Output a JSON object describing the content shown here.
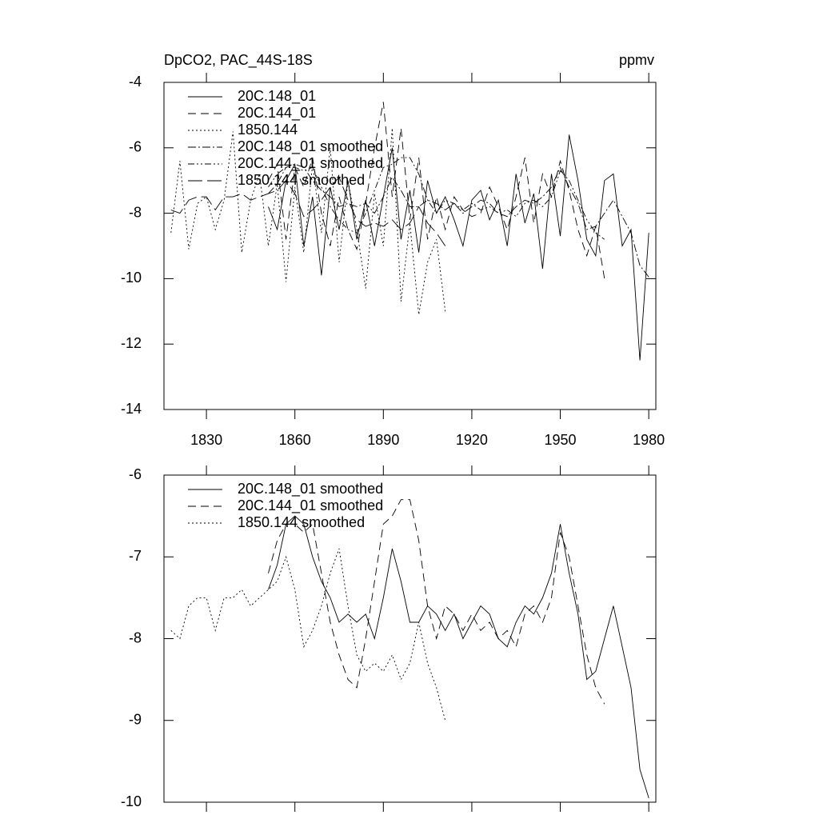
{
  "chart_data": [
    {
      "type": "line",
      "title": "DpCO2, PAC_44S-18S",
      "units_label": "ppmv",
      "x": [
        1818,
        1821,
        1824,
        1827,
        1830,
        1833,
        1836,
        1839,
        1842,
        1845,
        1848,
        1851,
        1854,
        1857,
        1860,
        1863,
        1866,
        1869,
        1872,
        1875,
        1878,
        1881,
        1884,
        1887,
        1890,
        1893,
        1896,
        1899,
        1902,
        1905,
        1908,
        1911,
        1914,
        1917,
        1920,
        1923,
        1926,
        1929,
        1932,
        1935,
        1938,
        1941,
        1944,
        1947,
        1950,
        1953,
        1956,
        1959,
        1962,
        1965,
        1968,
        1971,
        1974,
        1977,
        1980
      ],
      "xlim": [
        1815.6,
        1982.4
      ],
      "ylim": [
        -14,
        -4
      ],
      "xticks": [
        1830,
        1860,
        1890,
        1920,
        1950,
        1980
      ],
      "xtick_labels": true,
      "yticks": [
        -14,
        -12,
        -10,
        -8,
        -6,
        -4
      ],
      "series": [
        {
          "name": "20C.148_01",
          "color": "#000000",
          "style": "solid",
          "values": [
            null,
            null,
            null,
            null,
            null,
            null,
            null,
            null,
            null,
            null,
            null,
            -7.8,
            -8.5,
            -7.0,
            -6.5,
            -9.0,
            -7.5,
            -9.9,
            -7.2,
            -8.5,
            -7.0,
            -8.8,
            -7.6,
            -9.0,
            -7.5,
            -6.0,
            -8.8,
            -7.3,
            -9.2,
            -7.0,
            -8.0,
            -7.5,
            -8.2,
            -9.0,
            -7.6,
            -7.3,
            -8.2,
            -7.6,
            -9.0,
            -6.8,
            -8.3,
            -7.4,
            -9.7,
            -6.8,
            -8.7,
            -5.6,
            -7.0,
            -8.8,
            -9.3,
            -7.0,
            -6.8,
            -9.0,
            -8.5,
            -12.5,
            -8.6
          ]
        },
        {
          "name": "20C.144_01",
          "color": "#000000",
          "style": "dashed",
          "values": [
            null,
            null,
            null,
            null,
            null,
            null,
            null,
            null,
            null,
            null,
            null,
            -7.0,
            -6.5,
            -8.8,
            -6.6,
            -7.2,
            -6.3,
            -8.0,
            -9.0,
            -7.5,
            -8.5,
            -9.1,
            -7.7,
            -6.0,
            -4.6,
            -7.5,
            -5.4,
            -8.2,
            -6.3,
            -8.8,
            -7.5,
            -8.5,
            -7.5,
            -7.9,
            -8.1,
            -8.0,
            -7.2,
            -7.8,
            -8.5,
            -7.5,
            -6.3,
            -8.3,
            -6.8,
            -7.5,
            -6.4,
            -7.3,
            -8.5,
            -9.3,
            -8.4,
            -10.0,
            null,
            null,
            null,
            null,
            null
          ]
        },
        {
          "name": "1850.144",
          "color": "#000000",
          "style": "dotted",
          "values": [
            -8.6,
            -6.4,
            -9.1,
            -7.7,
            -7.5,
            -8.5,
            -7.6,
            -5.5,
            -9.2,
            -7.6,
            -6.8,
            -9.0,
            -7.1,
            -10.1,
            -7.2,
            -9.2,
            -6.5,
            -8.6,
            -6.0,
            -9.5,
            -7.0,
            -8.5,
            -10.3,
            -7.4,
            -9.0,
            -5.4,
            -10.7,
            -8.3,
            -11.1,
            -9.5,
            -8.8,
            -11.0,
            null,
            null,
            null,
            null,
            null,
            null,
            null,
            null,
            null,
            null,
            null,
            null,
            null,
            null,
            null,
            null,
            null,
            null,
            null,
            null,
            null,
            null,
            null
          ]
        },
        {
          "name": "20C.148_01 smoothed",
          "color": "#000000",
          "style": "dashdot",
          "values": [
            null,
            null,
            null,
            null,
            null,
            null,
            null,
            null,
            null,
            null,
            null,
            -7.4,
            -7.1,
            -6.6,
            -6.5,
            -6.6,
            -7.0,
            -7.3,
            -7.5,
            -7.8,
            -7.7,
            -7.8,
            -7.7,
            -8.0,
            -7.5,
            -6.9,
            -7.3,
            -7.8,
            -7.8,
            -7.6,
            -7.7,
            -7.9,
            -7.7,
            -8.0,
            -7.8,
            -7.6,
            -7.7,
            -8.0,
            -8.1,
            -7.8,
            -7.6,
            -7.7,
            -7.5,
            -7.2,
            -6.6,
            -7.2,
            -7.7,
            -8.5,
            -8.4,
            -8.0,
            -7.6,
            -8.1,
            -8.6,
            -9.6,
            -9.95
          ]
        },
        {
          "name": "20C.144_01 smoothed",
          "color": "#000000",
          "style": "dashdotdot",
          "values": [
            null,
            null,
            null,
            null,
            null,
            null,
            null,
            null,
            null,
            null,
            null,
            -7.2,
            -6.8,
            -6.6,
            -6.6,
            -6.7,
            -6.6,
            -7.2,
            -7.8,
            -8.2,
            -8.5,
            -8.6,
            -8.0,
            -7.3,
            -6.6,
            -6.5,
            -6.3,
            -6.3,
            -6.8,
            -7.6,
            -8.0,
            -7.6,
            -7.7,
            -7.9,
            -7.7,
            -7.9,
            -7.8,
            -8.0,
            -7.9,
            -8.1,
            -7.7,
            -7.6,
            -7.8,
            -7.5,
            -6.7,
            -7.0,
            -7.6,
            -8.2,
            -8.6,
            -8.8,
            null,
            null,
            null,
            null,
            null
          ]
        },
        {
          "name": "1850.144 smoothed",
          "color": "#000000",
          "style": "longdash",
          "values": [
            -7.9,
            -8.0,
            -7.6,
            -7.5,
            -7.5,
            -7.9,
            -7.5,
            -7.5,
            -7.4,
            -7.6,
            -7.5,
            -7.4,
            -7.3,
            -7.0,
            -7.4,
            -8.1,
            -7.9,
            -7.6,
            -7.2,
            -6.9,
            -7.6,
            -8.2,
            -8.4,
            -8.3,
            -8.4,
            -8.2,
            -8.5,
            -8.3,
            -7.8,
            -8.3,
            -8.6,
            -9.0,
            null,
            null,
            null,
            null,
            null,
            null,
            null,
            null,
            null,
            null,
            null,
            null,
            null,
            null,
            null,
            null,
            null,
            null,
            null,
            null,
            null,
            null,
            null
          ]
        }
      ]
    },
    {
      "type": "line",
      "x": [
        1818,
        1821,
        1824,
        1827,
        1830,
        1833,
        1836,
        1839,
        1842,
        1845,
        1848,
        1851,
        1854,
        1857,
        1860,
        1863,
        1866,
        1869,
        1872,
        1875,
        1878,
        1881,
        1884,
        1887,
        1890,
        1893,
        1896,
        1899,
        1902,
        1905,
        1908,
        1911,
        1914,
        1917,
        1920,
        1923,
        1926,
        1929,
        1932,
        1935,
        1938,
        1941,
        1944,
        1947,
        1950,
        1953,
        1956,
        1959,
        1962,
        1965,
        1968,
        1971,
        1974,
        1977,
        1980
      ],
      "xlim": [
        1815.6,
        1982.4
      ],
      "ylim": [
        -10,
        -6
      ],
      "xticks": [
        1830,
        1860,
        1890,
        1920,
        1950,
        1980
      ],
      "xtick_labels": false,
      "yticks": [
        -10,
        -9,
        -8,
        -7,
        -6
      ],
      "series": [
        {
          "name": "20C.148_01 smoothed",
          "color": "#000000",
          "style": "solid",
          "values": [
            null,
            null,
            null,
            null,
            null,
            null,
            null,
            null,
            null,
            null,
            null,
            -7.4,
            -7.1,
            -6.6,
            -6.5,
            -6.6,
            -7.0,
            -7.3,
            -7.5,
            -7.8,
            -7.7,
            -7.8,
            -7.7,
            -8.0,
            -7.5,
            -6.9,
            -7.3,
            -7.8,
            -7.8,
            -7.6,
            -7.7,
            -7.9,
            -7.7,
            -8.0,
            -7.8,
            -7.6,
            -7.7,
            -8.0,
            -8.1,
            -7.8,
            -7.6,
            -7.7,
            -7.5,
            -7.2,
            -6.6,
            -7.2,
            -7.7,
            -8.5,
            -8.4,
            -8.0,
            -7.6,
            -8.1,
            -8.6,
            -9.6,
            -9.95
          ]
        },
        {
          "name": "20C.144_01 smoothed",
          "color": "#000000",
          "style": "dashed",
          "values": [
            null,
            null,
            null,
            null,
            null,
            null,
            null,
            null,
            null,
            null,
            null,
            -7.2,
            -6.8,
            -6.6,
            -6.6,
            -6.7,
            -6.6,
            -7.2,
            -7.8,
            -8.2,
            -8.5,
            -8.6,
            -8.0,
            -7.3,
            -6.6,
            -6.5,
            -6.3,
            -6.3,
            -6.8,
            -7.6,
            -8.0,
            -7.6,
            -7.7,
            -7.9,
            -7.7,
            -7.9,
            -7.8,
            -8.0,
            -7.9,
            -8.1,
            -7.7,
            -7.6,
            -7.8,
            -7.5,
            -6.7,
            -7.0,
            -7.6,
            -8.2,
            -8.6,
            -8.8,
            null,
            null,
            null,
            null,
            null
          ]
        },
        {
          "name": "1850.144 smoothed",
          "color": "#000000",
          "style": "dotted",
          "values": [
            -7.9,
            -8.0,
            -7.6,
            -7.5,
            -7.5,
            -7.9,
            -7.5,
            -7.5,
            -7.4,
            -7.6,
            -7.5,
            -7.4,
            -7.3,
            -7.0,
            -7.4,
            -8.1,
            -7.9,
            -7.6,
            -7.2,
            -6.9,
            -7.6,
            -8.2,
            -8.4,
            -8.3,
            -8.4,
            -8.2,
            -8.5,
            -8.3,
            -7.8,
            -8.3,
            -8.6,
            -9.0,
            null,
            null,
            null,
            null,
            null,
            null,
            null,
            null,
            null,
            null,
            null,
            null,
            null,
            null,
            null,
            null,
            null,
            null,
            null,
            null,
            null,
            null,
            null
          ]
        }
      ]
    }
  ]
}
